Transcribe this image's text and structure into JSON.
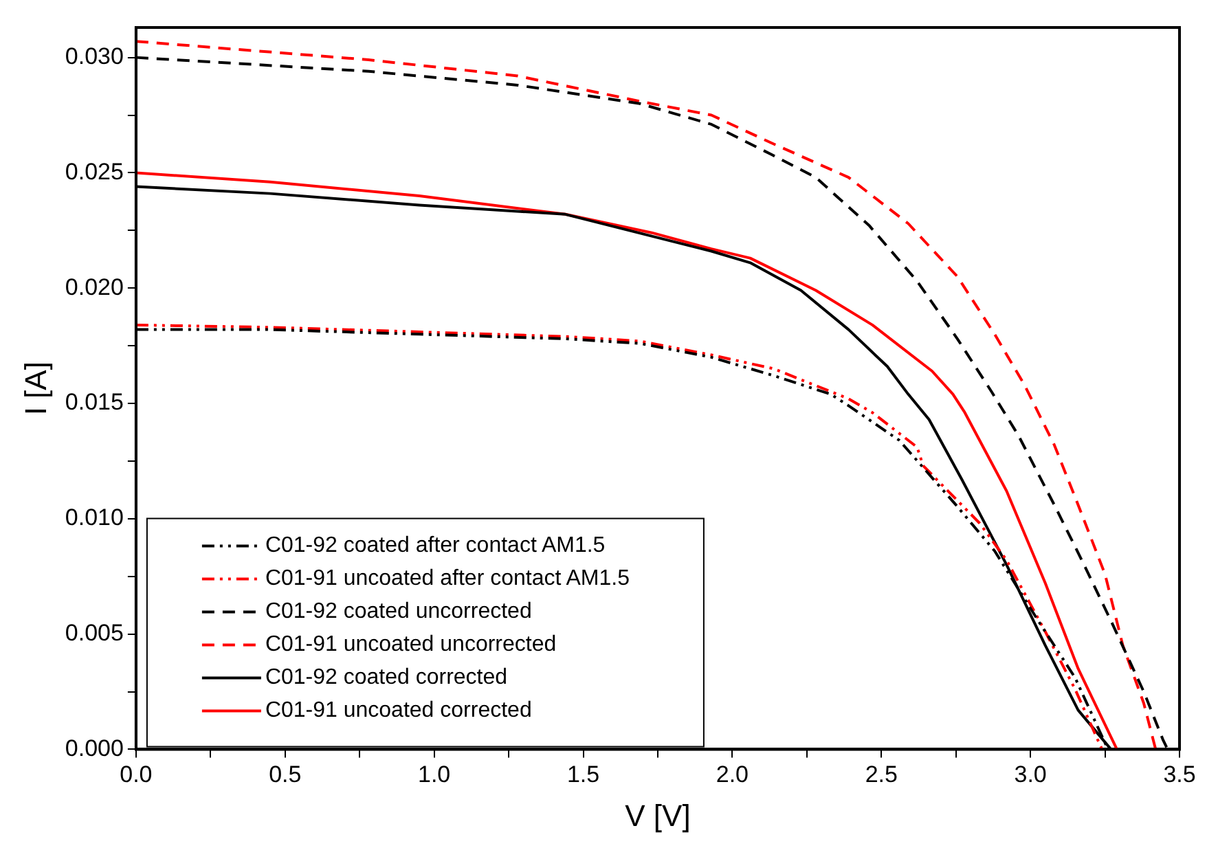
{
  "chart_data": {
    "type": "line",
    "xlabel": "V [V]",
    "ylabel": "I [A]",
    "xlim": [
      0,
      3.5
    ],
    "ylim": [
      0,
      0.0313
    ],
    "xticks": [
      {
        "value": 0,
        "label": "0.0"
      },
      {
        "value": 0.25,
        "label": null
      },
      {
        "value": 0.5,
        "label": "0.5"
      },
      {
        "value": 0.75,
        "label": null
      },
      {
        "value": 1,
        "label": "1.0"
      },
      {
        "value": 1.25,
        "label": null
      },
      {
        "value": 1.5,
        "label": "1.5"
      },
      {
        "value": 1.75,
        "label": null
      },
      {
        "value": 2,
        "label": "2.0"
      },
      {
        "value": 2.25,
        "label": null
      },
      {
        "value": 2.5,
        "label": "2.5"
      },
      {
        "value": 2.75,
        "label": null
      },
      {
        "value": 3,
        "label": "3.0"
      },
      {
        "value": 3.25,
        "label": null
      },
      {
        "value": 3.5,
        "label": "3.5"
      }
    ],
    "yticks": [
      {
        "value": 0,
        "label": "0.000"
      },
      {
        "value": 0.0025,
        "label": null
      },
      {
        "value": 0.005,
        "label": "0.005"
      },
      {
        "value": 0.0075,
        "label": null
      },
      {
        "value": 0.01,
        "label": "0.010"
      },
      {
        "value": 0.0125,
        "label": null
      },
      {
        "value": 0.015,
        "label": "0.015"
      },
      {
        "value": 0.0175,
        "label": null
      },
      {
        "value": 0.02,
        "label": "0.020"
      },
      {
        "value": 0.0225,
        "label": null
      },
      {
        "value": 0.025,
        "label": "0.025"
      },
      {
        "value": 0.0275,
        "label": null
      },
      {
        "value": 0.03,
        "label": "0.030"
      }
    ],
    "grid": false,
    "legend": "bottom left",
    "marker": "none",
    "series": [
      {
        "name": "C01-92 coated after contact AM1.5",
        "color": "#000000",
        "line_style": "dotted",
        "x": [
          0,
          0.45,
          0.95,
          1.44,
          1.69,
          1.93,
          2.14,
          2.33,
          2.39,
          2.56,
          2.75,
          2.88,
          3.02,
          3.15,
          3.26
        ],
        "values": [
          0.0182,
          0.0182,
          0.018,
          0.0178,
          0.0176,
          0.017,
          0.0162,
          0.0154,
          0.0149,
          0.0134,
          0.0106,
          0.0086,
          0.0057,
          0.0031,
          0
        ]
      },
      {
        "name": "C01-91 uncoated after contact AM1.5",
        "color": "#ff0000",
        "line_style": "dotted",
        "x": [
          0,
          0.45,
          0.95,
          1.44,
          1.69,
          1.93,
          2.14,
          2.39,
          2.47,
          2.62,
          2.64,
          2.83,
          2.92,
          3.05,
          3.15,
          3.24
        ],
        "values": [
          0.0184,
          0.0183,
          0.0181,
          0.0179,
          0.0177,
          0.0171,
          0.0165,
          0.0152,
          0.0146,
          0.0131,
          0.0123,
          0.0098,
          0.0082,
          0.0051,
          0.0026,
          0
        ]
      },
      {
        "name": "C01-92 coated uncorrected",
        "color": "#000000",
        "line_style": "dashed",
        "x": [
          0,
          0.78,
          1.28,
          1.69,
          1.93,
          2.13,
          2.28,
          2.46,
          2.62,
          2.755,
          2.87,
          2.96,
          3.08,
          3.18,
          3.28,
          3.38,
          3.445,
          3.46
        ],
        "values": [
          0.03,
          0.0294,
          0.0288,
          0.028,
          0.0271,
          0.0258,
          0.0248,
          0.0227,
          0.0203,
          0.0178,
          0.0155,
          0.0136,
          0.0106,
          0.008,
          0.0053,
          0.0025,
          0.0004,
          0
        ]
      },
      {
        "name": "C01-91 uncoated uncorrected",
        "color": "#ff0000",
        "line_style": "dashed",
        "x": [
          0,
          0.29,
          0.78,
          1.28,
          1.69,
          1.93,
          2.13,
          2.39,
          2.59,
          2.755,
          2.88,
          2.98,
          3.08,
          3.16,
          3.25,
          3.31,
          3.38,
          3.42
        ],
        "values": [
          0.0307,
          0.0304,
          0.0299,
          0.0292,
          0.0281,
          0.0275,
          0.0263,
          0.0248,
          0.0228,
          0.0205,
          0.018,
          0.0158,
          0.0132,
          0.0106,
          0.0076,
          0.0045,
          0.002,
          0
        ]
      },
      {
        "name": "C01-92 coated corrected",
        "color": "#000000",
        "line_style": "solid",
        "x": [
          0,
          0.45,
          0.95,
          1.44,
          1.93,
          2.06,
          2.23,
          2.39,
          2.52,
          2.59,
          2.66,
          2.77,
          2.92,
          3.05,
          3.16,
          3.27
        ],
        "values": [
          0.0244,
          0.0241,
          0.0236,
          0.0232,
          0.0216,
          0.0211,
          0.0199,
          0.0182,
          0.0166,
          0.0154,
          0.0143,
          0.0117,
          0.008,
          0.0045,
          0.0017,
          0
        ]
      },
      {
        "name": "C01-91 uncoated corrected",
        "color": "#ff0000",
        "line_style": "solid",
        "x": [
          0,
          0.45,
          0.95,
          1.44,
          1.73,
          1.93,
          2.06,
          2.28,
          2.47,
          2.67,
          2.74,
          2.78,
          2.92,
          3.05,
          3.16,
          3.29
        ],
        "values": [
          0.025,
          0.0246,
          0.024,
          0.0232,
          0.0224,
          0.0217,
          0.0213,
          0.0199,
          0.0184,
          0.0164,
          0.0154,
          0.0146,
          0.0112,
          0.0072,
          0.0035,
          0
        ]
      }
    ]
  }
}
